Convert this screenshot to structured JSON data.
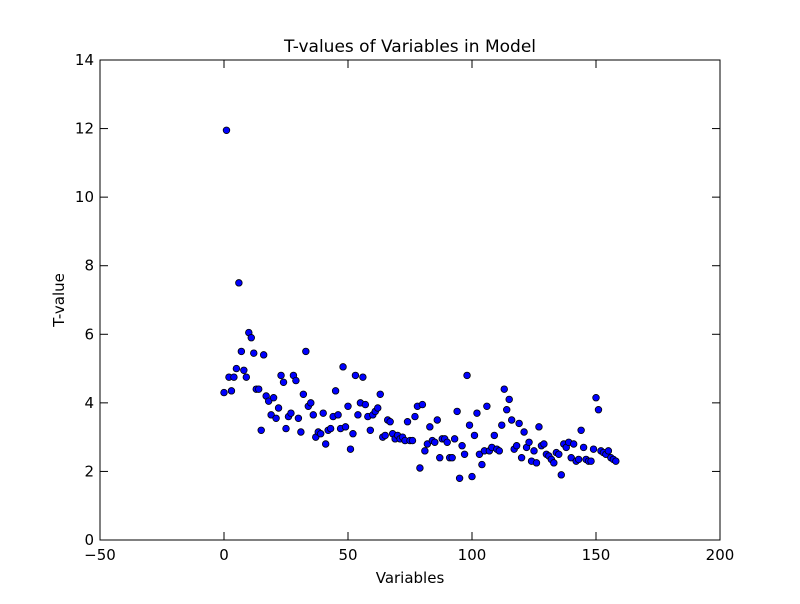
{
  "chart_data": {
    "type": "scatter",
    "title": "T-values of Variables in Model",
    "xlabel": "Variables",
    "ylabel": "T-value",
    "xlim": [
      -50,
      200
    ],
    "ylim": [
      0,
      14
    ],
    "xticks": [
      -50,
      0,
      50,
      100,
      150,
      200
    ],
    "yticks": [
      0,
      2,
      4,
      6,
      8,
      10,
      12,
      14
    ],
    "xtick_labels": [
      "−50",
      "0",
      "50",
      "100",
      "150",
      "200"
    ],
    "ytick_labels": [
      "0",
      "2",
      "4",
      "6",
      "8",
      "10",
      "12",
      "14"
    ],
    "grid": false,
    "marker_color": "#0000ff",
    "marker_edge": "#000000",
    "points": [
      [
        0,
        4.3
      ],
      [
        1,
        11.95
      ],
      [
        2,
        4.75
      ],
      [
        3,
        4.35
      ],
      [
        4,
        4.75
      ],
      [
        5,
        5.0
      ],
      [
        6,
        7.5
      ],
      [
        7,
        5.5
      ],
      [
        8,
        4.95
      ],
      [
        9,
        4.75
      ],
      [
        10,
        6.05
      ],
      [
        11,
        5.9
      ],
      [
        12,
        5.45
      ],
      [
        13,
        4.4
      ],
      [
        14,
        4.4
      ],
      [
        15,
        3.2
      ],
      [
        16,
        5.4
      ],
      [
        17,
        4.2
      ],
      [
        18,
        4.05
      ],
      [
        19,
        3.65
      ],
      [
        20,
        4.15
      ],
      [
        21,
        3.55
      ],
      [
        22,
        3.85
      ],
      [
        23,
        4.8
      ],
      [
        24,
        4.6
      ],
      [
        25,
        3.25
      ],
      [
        26,
        3.6
      ],
      [
        27,
        3.7
      ],
      [
        28,
        4.8
      ],
      [
        29,
        4.65
      ],
      [
        30,
        3.55
      ],
      [
        31,
        3.15
      ],
      [
        32,
        4.25
      ],
      [
        33,
        5.5
      ],
      [
        34,
        3.9
      ],
      [
        35,
        4.0
      ],
      [
        36,
        3.65
      ],
      [
        37,
        3.0
      ],
      [
        38,
        3.15
      ],
      [
        39,
        3.1
      ],
      [
        40,
        3.7
      ],
      [
        41,
        2.8
      ],
      [
        42,
        3.2
      ],
      [
        43,
        3.25
      ],
      [
        44,
        3.6
      ],
      [
        45,
        4.35
      ],
      [
        46,
        3.65
      ],
      [
        47,
        3.25
      ],
      [
        48,
        5.05
      ],
      [
        49,
        3.3
      ],
      [
        50,
        3.9
      ],
      [
        51,
        2.65
      ],
      [
        52,
        3.1
      ],
      [
        53,
        4.8
      ],
      [
        54,
        3.65
      ],
      [
        55,
        4.0
      ],
      [
        56,
        4.75
      ],
      [
        57,
        3.95
      ],
      [
        58,
        3.6
      ],
      [
        59,
        3.2
      ],
      [
        60,
        3.65
      ],
      [
        61,
        3.75
      ],
      [
        62,
        3.85
      ],
      [
        63,
        4.25
      ],
      [
        64,
        3.0
      ],
      [
        65,
        3.05
      ],
      [
        66,
        3.5
      ],
      [
        67,
        3.45
      ],
      [
        68,
        3.1
      ],
      [
        69,
        2.95
      ],
      [
        70,
        3.05
      ],
      [
        71,
        2.95
      ],
      [
        72,
        3.0
      ],
      [
        73,
        2.9
      ],
      [
        74,
        3.45
      ],
      [
        75,
        2.9
      ],
      [
        76,
        2.9
      ],
      [
        77,
        3.6
      ],
      [
        78,
        3.9
      ],
      [
        79,
        2.1
      ],
      [
        80,
        3.95
      ],
      [
        81,
        2.6
      ],
      [
        82,
        2.8
      ],
      [
        83,
        3.3
      ],
      [
        84,
        2.9
      ],
      [
        85,
        2.85
      ],
      [
        86,
        3.5
      ],
      [
        87,
        2.4
      ],
      [
        88,
        2.95
      ],
      [
        89,
        2.95
      ],
      [
        90,
        2.85
      ],
      [
        91,
        2.4
      ],
      [
        92,
        2.4
      ],
      [
        93,
        2.95
      ],
      [
        94,
        3.75
      ],
      [
        95,
        1.8
      ],
      [
        96,
        2.75
      ],
      [
        97,
        2.5
      ],
      [
        98,
        4.8
      ],
      [
        99,
        3.35
      ],
      [
        100,
        1.85
      ],
      [
        101,
        3.05
      ],
      [
        102,
        3.7
      ],
      [
        103,
        2.5
      ],
      [
        104,
        2.2
      ],
      [
        105,
        2.6
      ],
      [
        106,
        3.9
      ],
      [
        107,
        2.6
      ],
      [
        108,
        2.7
      ],
      [
        109,
        3.05
      ],
      [
        110,
        2.65
      ],
      [
        111,
        2.6
      ],
      [
        112,
        3.35
      ],
      [
        113,
        4.4
      ],
      [
        114,
        3.8
      ],
      [
        115,
        4.1
      ],
      [
        116,
        3.5
      ],
      [
        117,
        2.65
      ],
      [
        118,
        2.75
      ],
      [
        119,
        3.4
      ],
      [
        120,
        2.4
      ],
      [
        121,
        3.15
      ],
      [
        122,
        2.7
      ],
      [
        123,
        2.85
      ],
      [
        124,
        2.3
      ],
      [
        125,
        2.6
      ],
      [
        126,
        2.25
      ],
      [
        127,
        3.3
      ],
      [
        128,
        2.75
      ],
      [
        129,
        2.8
      ],
      [
        130,
        2.5
      ],
      [
        131,
        2.45
      ],
      [
        132,
        2.35
      ],
      [
        133,
        2.25
      ],
      [
        134,
        2.55
      ],
      [
        135,
        2.5
      ],
      [
        136,
        1.9
      ],
      [
        137,
        2.8
      ],
      [
        138,
        2.7
      ],
      [
        139,
        2.85
      ],
      [
        140,
        2.4
      ],
      [
        141,
        2.8
      ],
      [
        142,
        2.3
      ],
      [
        143,
        2.35
      ],
      [
        144,
        3.2
      ],
      [
        145,
        2.7
      ],
      [
        146,
        2.35
      ],
      [
        147,
        2.3
      ],
      [
        148,
        2.3
      ],
      [
        149,
        2.65
      ],
      [
        150,
        4.15
      ],
      [
        151,
        3.8
      ],
      [
        152,
        2.6
      ],
      [
        153,
        2.55
      ],
      [
        154,
        2.5
      ],
      [
        155,
        2.6
      ],
      [
        156,
        2.4
      ],
      [
        157,
        2.35
      ],
      [
        158,
        2.3
      ]
    ]
  }
}
